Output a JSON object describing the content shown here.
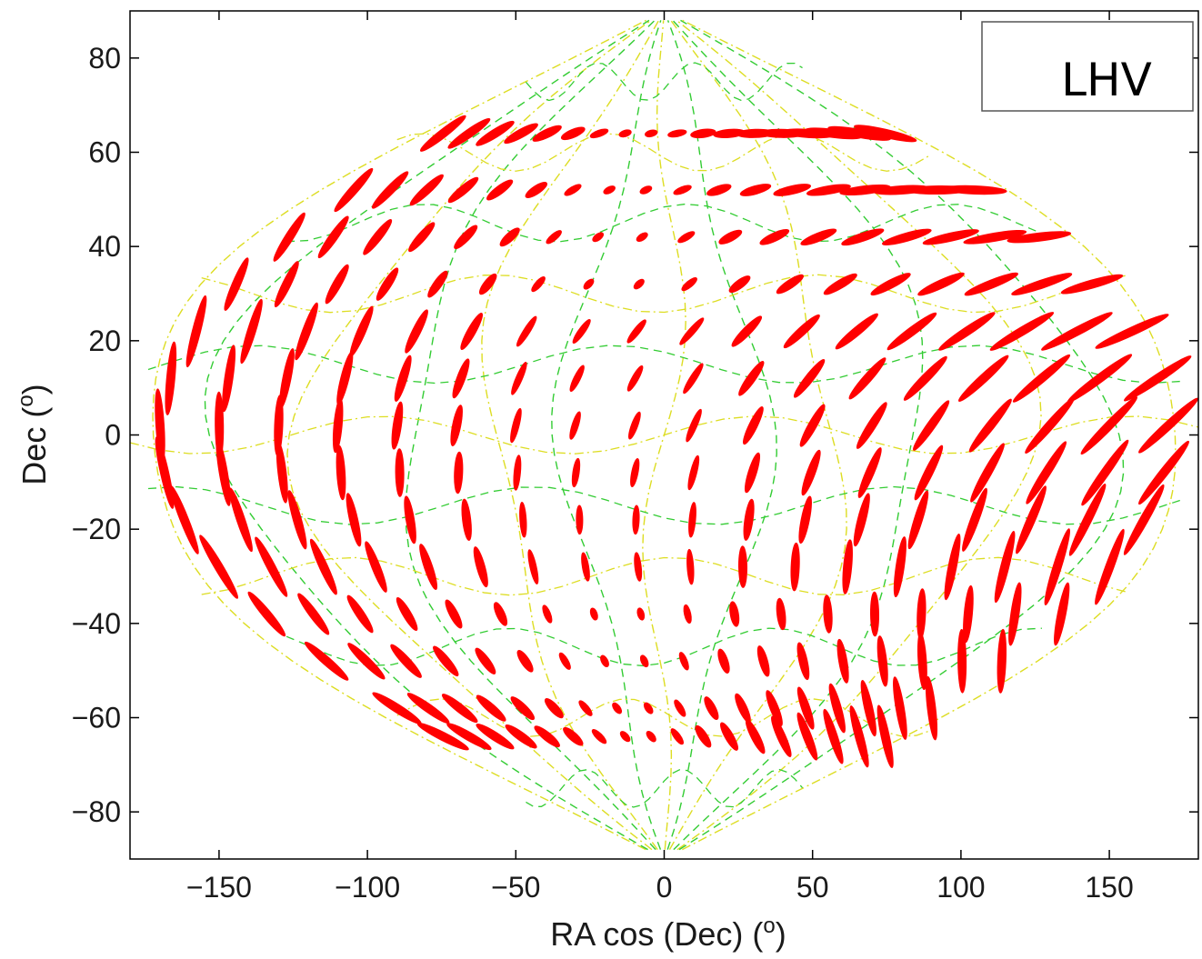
{
  "chart_data": {
    "type": "scatter",
    "subtype": "sky-map error ellipses with projected grid",
    "projection": "sinusoidal (RA cos Dec vs Dec)",
    "xlabel_text": "RA cos (Dec) (",
    "xlabel_unit": "o",
    "xlabel_close": ")",
    "ylabel_text": "Dec (",
    "ylabel_unit": "o",
    "ylabel_close": ")",
    "xlim": [
      -180,
      180
    ],
    "ylim": [
      -90,
      90
    ],
    "xticks": [
      -150,
      -100,
      -50,
      0,
      50,
      100,
      150
    ],
    "yticks": [
      -80,
      -60,
      -40,
      -20,
      0,
      20,
      40,
      60,
      80
    ],
    "xtick_labels": [
      "−150",
      "−100",
      "−50",
      "0",
      "50",
      "100",
      "150"
    ],
    "ytick_labels": [
      "−80",
      "−60",
      "−40",
      "−20",
      "0",
      "20",
      "40",
      "60",
      "80"
    ],
    "legend": {
      "label": "LHV",
      "placement": "top-right"
    },
    "grid": false,
    "series_colors": {
      "ellipses": "#ff0000",
      "grid_dashed": "#33cc33",
      "grid_dashdot": "#dddd22"
    },
    "ellipse_rows_dec": [
      64,
      52,
      42,
      32,
      22,
      12,
      2,
      -8,
      -18,
      -28,
      -38,
      -48,
      -58,
      -64
    ],
    "ellipse_columns_ra": [
      -170,
      -150,
      -130,
      -110,
      -90,
      -70,
      -50,
      -30,
      -10,
      10,
      30,
      50,
      70,
      90,
      110,
      130,
      150,
      170
    ],
    "grid_meridians_ra": [
      -180,
      -150,
      -120,
      -90,
      -60,
      -30,
      0,
      30,
      60,
      90,
      120,
      150,
      180
    ],
    "grid_parallels_dec": [
      -75,
      -60,
      -45,
      -30,
      -15,
      0,
      15,
      30,
      45,
      60,
      75
    ]
  }
}
